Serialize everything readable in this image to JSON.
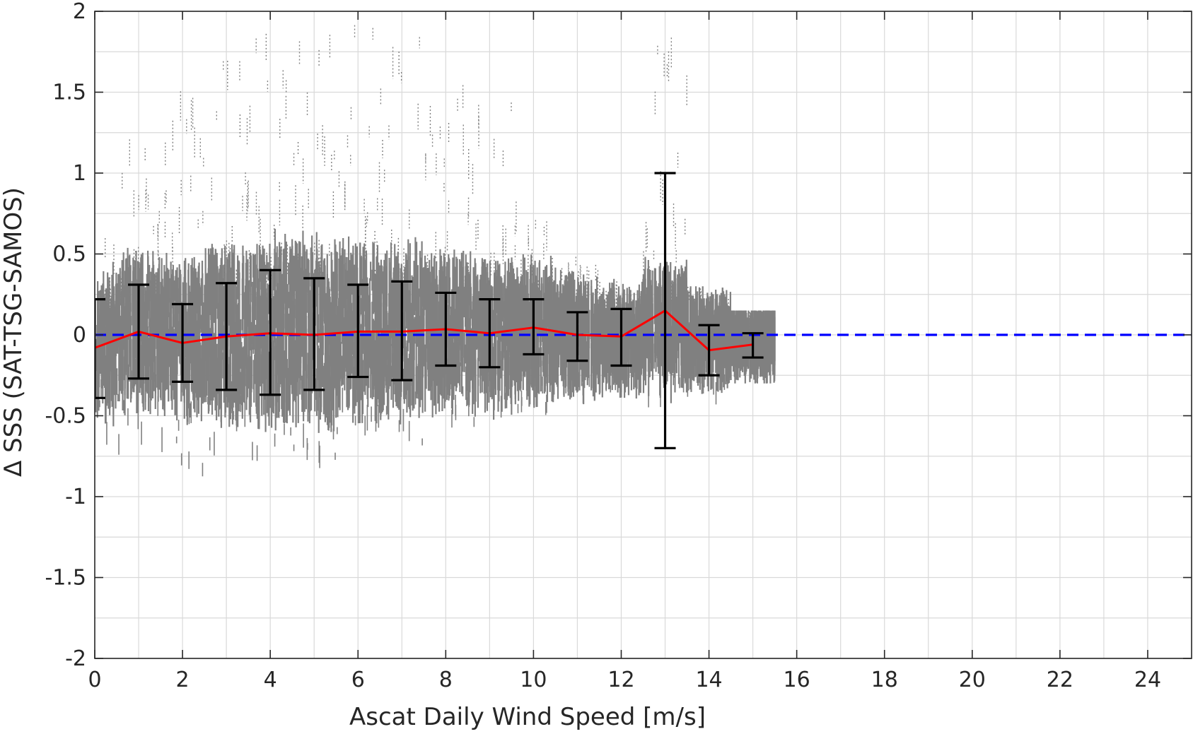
{
  "chart_data": {
    "type": "scatter",
    "title": "",
    "xlabel": "Ascat Daily Wind Speed [m/s]",
    "ylabel": "Δ SSS (SAT-TSG-SAMOS)",
    "xlim": [
      0,
      25
    ],
    "ylim": [
      -2,
      2
    ],
    "xticks": [
      0,
      2,
      4,
      6,
      8,
      10,
      12,
      14,
      16,
      18,
      20,
      22,
      24
    ],
    "yticks": [
      2,
      1.5,
      1,
      0.5,
      0,
      -0.5,
      -1,
      -1.5,
      -2
    ],
    "ytick_labels": [
      "2",
      "1.5",
      "1",
      "0.5",
      "0",
      "-0.5",
      "-1",
      "-1.5",
      "-2"
    ],
    "grid": true,
    "legend": "none",
    "colors": {
      "scatter": "#808080",
      "mean_line": "#ff0000",
      "zero_line": "#0000ff",
      "error_bars": "#000000"
    },
    "scatter_bins": [
      {
        "x": 0,
        "core": [
          -0.35,
          0.25
        ],
        "min": -0.7,
        "max": 0.7
      },
      {
        "x": 1,
        "core": [
          -0.3,
          0.35
        ],
        "min": -0.75,
        "max": 1.25
      },
      {
        "x": 2,
        "core": [
          -0.35,
          0.3
        ],
        "min": -0.95,
        "max": 1.55
      },
      {
        "x": 3,
        "core": [
          -0.4,
          0.4
        ],
        "min": -0.75,
        "max": 1.7
      },
      {
        "x": 4,
        "core": [
          -0.4,
          0.45
        ],
        "min": -0.9,
        "max": 2.0
      },
      {
        "x": 5,
        "core": [
          -0.4,
          0.45
        ],
        "min": -0.9,
        "max": 2.0
      },
      {
        "x": 6,
        "core": [
          -0.35,
          0.4
        ],
        "min": -0.65,
        "max": 2.0
      },
      {
        "x": 7,
        "core": [
          -0.35,
          0.4
        ],
        "min": -0.7,
        "max": 2.0
      },
      {
        "x": 8,
        "core": [
          -0.3,
          0.35
        ],
        "min": -0.6,
        "max": 1.55
      },
      {
        "x": 9,
        "core": [
          -0.3,
          0.3
        ],
        "min": -0.6,
        "max": 1.65
      },
      {
        "x": 10,
        "core": [
          -0.25,
          0.3
        ],
        "min": -0.55,
        "max": 0.9
      },
      {
        "x": 11,
        "core": [
          -0.2,
          0.2
        ],
        "min": -0.45,
        "max": 0.5
      },
      {
        "x": 12,
        "core": [
          -0.2,
          0.15
        ],
        "min": -0.4,
        "max": 0.35
      },
      {
        "x": 13,
        "core": [
          -0.2,
          0.3
        ],
        "min": -0.45,
        "max": 1.85
      },
      {
        "x": 14,
        "core": [
          -0.15,
          0.1
        ],
        "min": -0.5,
        "max": 0.3
      },
      {
        "x": 15,
        "core": [
          -0.1,
          0.05
        ],
        "min": -0.3,
        "max": 0.15
      }
    ],
    "series": [
      {
        "type": "line",
        "x": [
          0,
          1,
          2,
          3,
          4,
          5,
          6,
          7,
          8,
          9,
          10,
          11,
          12,
          13,
          14,
          15
        ],
        "values": [
          -0.08,
          0.02,
          -0.05,
          -0.01,
          0.01,
          0.0,
          0.02,
          0.02,
          0.035,
          0.01,
          0.045,
          0.0,
          -0.01,
          0.15,
          -0.095,
          -0.06
        ]
      },
      {
        "type": "errorbar",
        "x": [
          0,
          1,
          2,
          3,
          4,
          5,
          6,
          7,
          8,
          9,
          10,
          11,
          12,
          13,
          14,
          15
        ],
        "lower": [
          -0.39,
          -0.27,
          -0.29,
          -0.34,
          -0.37,
          -0.34,
          -0.26,
          -0.28,
          -0.19,
          -0.2,
          -0.12,
          -0.16,
          -0.19,
          -0.7,
          -0.25,
          -0.14
        ],
        "upper": [
          0.22,
          0.31,
          0.19,
          0.32,
          0.4,
          0.35,
          0.31,
          0.33,
          0.26,
          0.22,
          0.22,
          0.14,
          0.16,
          1.0,
          0.06,
          0.01
        ]
      },
      {
        "type": "hline",
        "y": 0,
        "style": "dashed"
      }
    ]
  }
}
